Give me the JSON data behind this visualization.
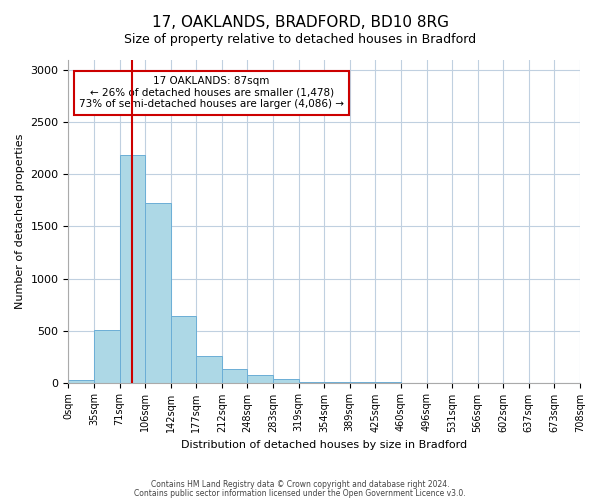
{
  "title": "17, OAKLANDS, BRADFORD, BD10 8RG",
  "subtitle": "Size of property relative to detached houses in Bradford",
  "xlabel": "Distribution of detached houses by size in Bradford",
  "ylabel": "Number of detached properties",
  "bin_labels": [
    "0sqm",
    "35sqm",
    "71sqm",
    "106sqm",
    "142sqm",
    "177sqm",
    "212sqm",
    "248sqm",
    "283sqm",
    "319sqm",
    "354sqm",
    "389sqm",
    "425sqm",
    "460sqm",
    "496sqm",
    "531sqm",
    "566sqm",
    "602sqm",
    "637sqm",
    "673sqm",
    "708sqm"
  ],
  "bar_heights": [
    25,
    510,
    2190,
    1730,
    635,
    260,
    130,
    70,
    30,
    10,
    5,
    2,
    1,
    0,
    0,
    0,
    0,
    0,
    0,
    0
  ],
  "bar_color": "#add8e6",
  "bar_edge_color": "#6baed6",
  "red_line_bin_index": 2,
  "annotation_title": "17 OAKLANDS: 87sqm",
  "annotation_line1": "← 26% of detached houses are smaller (1,478)",
  "annotation_line2": "73% of semi-detached houses are larger (4,086) →",
  "annotation_box_color": "#ffffff",
  "annotation_box_edge_color": "#cc0000",
  "red_line_color": "#cc0000",
  "ylim": [
    0,
    3100
  ],
  "yticks": [
    0,
    500,
    1000,
    1500,
    2000,
    2500,
    3000
  ],
  "footer1": "Contains HM Land Registry data © Crown copyright and database right 2024.",
  "footer2": "Contains public sector information licensed under the Open Government Licence v3.0.",
  "background_color": "#ffffff",
  "grid_color": "#c0d0e0"
}
